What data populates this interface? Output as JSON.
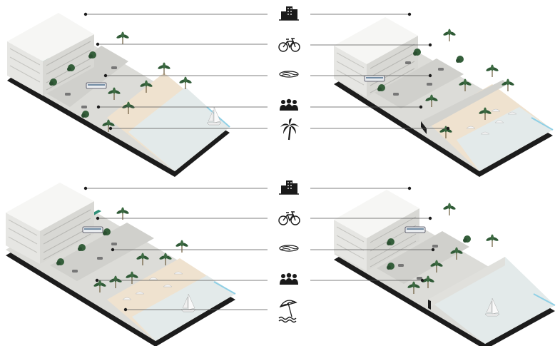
{
  "diagram": {
    "icon_rows": [
      {
        "icons": [
          "building-icon",
          "bicycle-icon",
          "road-icon",
          "people-icon",
          "palm-tree-icon"
        ]
      },
      {
        "icons": [
          "building-icon",
          "bicycle-icon",
          "road-icon",
          "people-icon",
          "beach-umbrella-icon"
        ]
      }
    ],
    "blocks": [
      {
        "id": "top-left",
        "coast": "natural-beach"
      },
      {
        "id": "top-right",
        "coast": "raised-promenade-with-beach"
      },
      {
        "id": "bottom-left",
        "coast": "wide-beach-with-umbrellas"
      },
      {
        "id": "bottom-right",
        "coast": "seawall-to-water"
      }
    ],
    "colors": {
      "ground_dark": "#1c1c1c",
      "street": "#d9d9d6",
      "sand": "#efe2cf",
      "water": "#dfe9ea",
      "water_edge": "#8fd0e6",
      "bike_lane": "#2f8f77",
      "palm": "#2f5a36",
      "leader_line": "#555555"
    }
  }
}
